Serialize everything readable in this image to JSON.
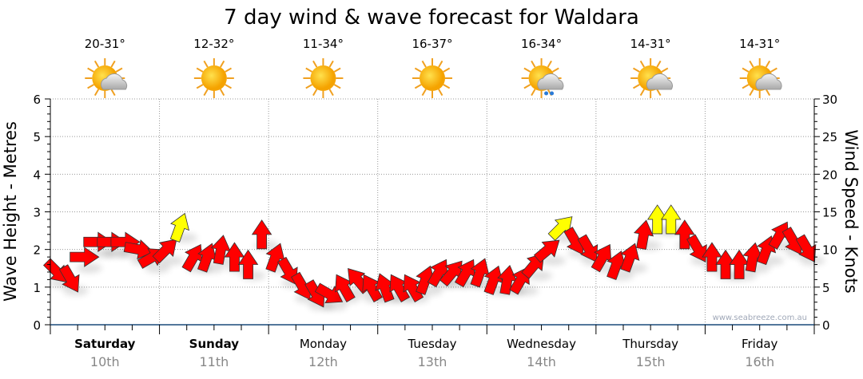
{
  "chart_data": {
    "type": "scatter",
    "title": "7 day wind & wave forecast for Waldara",
    "ylabel": "Wave Height - Metres",
    "y2label": "Wind Speed - Knots",
    "ylim": [
      0,
      6
    ],
    "y2lim": [
      0,
      30
    ],
    "yticks": [
      "0",
      "1",
      "2",
      "3",
      "4",
      "5",
      "6"
    ],
    "y2ticks": [
      "0",
      "5",
      "10",
      "15",
      "20",
      "25",
      "30"
    ],
    "grid": true,
    "watermark": "www.seabreeze.com.au",
    "days": [
      {
        "day": "Saturday",
        "date": "10th",
        "temp": "20-31°",
        "icon": "partly-cloudy",
        "bold": true
      },
      {
        "day": "Sunday",
        "date": "11th",
        "temp": "12-32°",
        "icon": "sunny",
        "bold": true
      },
      {
        "day": "Monday",
        "date": "12th",
        "temp": "11-34°",
        "icon": "sunny",
        "bold": false
      },
      {
        "day": "Tuesday",
        "date": "13th",
        "temp": "16-37°",
        "icon": "sunny",
        "bold": false
      },
      {
        "day": "Wednesday",
        "date": "14th",
        "temp": "16-34°",
        "icon": "showers",
        "bold": false
      },
      {
        "day": "Thursday",
        "date": "15th",
        "temp": "14-31°",
        "icon": "partly-cloudy",
        "bold": false
      },
      {
        "day": "Friday",
        "date": "16th",
        "temp": "14-31°",
        "icon": "partly-cloudy",
        "bold": false
      }
    ],
    "wind_interval_hours": 3,
    "wind_knots": [
      7,
      6,
      9,
      11,
      11,
      11,
      10,
      9,
      10,
      13,
      9,
      9,
      10,
      9,
      8,
      12,
      9,
      7,
      5,
      4,
      4,
      5,
      6,
      5,
      5,
      5,
      5,
      6,
      7,
      7,
      7,
      7,
      6,
      6,
      6,
      8,
      10,
      13,
      11,
      10,
      9,
      8,
      9,
      12,
      14,
      14,
      12,
      10,
      9,
      8,
      8,
      9,
      10,
      12,
      11,
      10
    ],
    "wind_direction_deg": [
      135,
      150,
      90,
      90,
      90,
      90,
      100,
      60,
      45,
      20,
      30,
      20,
      10,
      0,
      0,
      0,
      20,
      150,
      150,
      150,
      120,
      -30,
      -40,
      -30,
      -20,
      -30,
      -30,
      20,
      30,
      40,
      30,
      20,
      20,
      10,
      30,
      40,
      50,
      45,
      150,
      150,
      30,
      20,
      20,
      10,
      0,
      0,
      0,
      150,
      0,
      0,
      0,
      10,
      20,
      30,
      150,
      150
    ],
    "yellow_threshold_knots": 13
  }
}
